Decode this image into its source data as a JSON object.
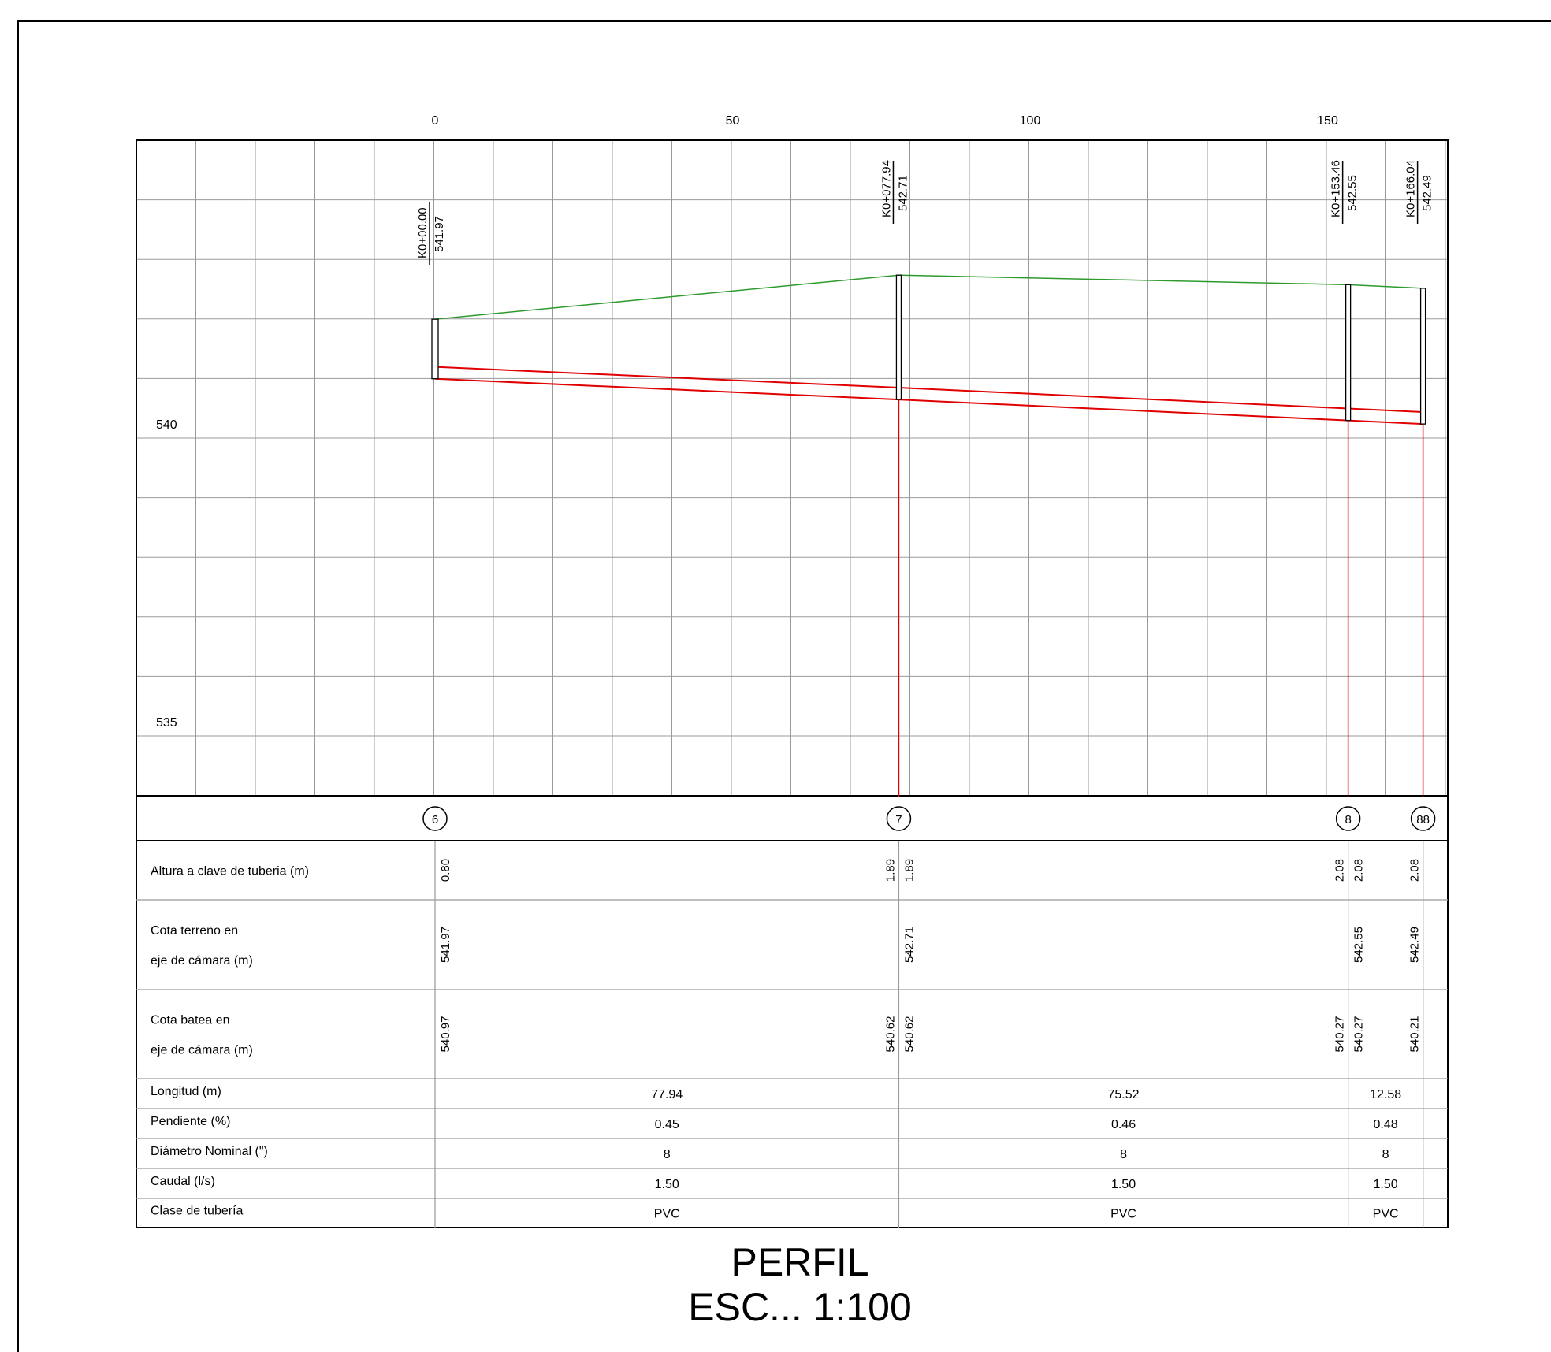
{
  "drawing": {
    "title": "PERFIL",
    "scale_label": "ESC... 1:100"
  },
  "colors": {
    "grid": "#9a9a9a",
    "frame": "#000000",
    "terrain": "#2e9a2e",
    "pipe": "#e00000",
    "marker_line": "#e00000"
  },
  "chart_data": {
    "type": "line",
    "x_ticks": [
      "0",
      "50",
      "100",
      "150"
    ],
    "y_ticks": [
      "540",
      "535"
    ],
    "xlim": [
      -50,
      170
    ],
    "ylim": [
      533,
      544
    ],
    "grid": true,
    "stations": [
      {
        "x": 0,
        "station": "K0+00.00",
        "elevation": "541.97",
        "node": "6",
        "ground": 541.97,
        "invert": 540.97,
        "structure_bottom": 540.97
      },
      {
        "x": 77.94,
        "station": "K0+077.94",
        "elevation": "542.71",
        "node": "7",
        "ground": 542.71,
        "invert": 540.62,
        "structure_bottom": 540.62
      },
      {
        "x": 153.46,
        "station": "K0+153.46",
        "elevation": "542.55",
        "node": "8",
        "ground": 542.55,
        "invert": 540.27,
        "structure_bottom": 540.27
      },
      {
        "x": 166.04,
        "station": "K0+166.04",
        "elevation": "542.49",
        "node": "88",
        "ground": 542.49,
        "invert": 540.21,
        "structure_bottom": 540.21
      }
    ],
    "pipe_diameter_m": 0.2,
    "series": []
  },
  "profile_table": {
    "rows": [
      {
        "label_lines": [
          "Altura a clave de tuberia (m)"
        ],
        "values": [
          {
            "x": 0,
            "side": "right",
            "text": "0.80"
          },
          {
            "x": 77.94,
            "side": "left",
            "text": "1.89"
          },
          {
            "x": 77.94,
            "side": "right",
            "text": "1.89"
          },
          {
            "x": 153.46,
            "side": "left",
            "text": "2.08"
          },
          {
            "x": 153.46,
            "side": "right",
            "text": "2.08"
          },
          {
            "x": 166.04,
            "side": "left",
            "text": "2.08"
          }
        ]
      },
      {
        "label_lines": [
          "Cota terreno en",
          "eje de cámara (m)"
        ],
        "values": [
          {
            "x": 0,
            "side": "right",
            "text": "541.97"
          },
          {
            "x": 77.94,
            "side": "right",
            "text": "542.71"
          },
          {
            "x": 153.46,
            "side": "right",
            "text": "542.55"
          },
          {
            "x": 166.04,
            "side": "left",
            "text": "542.49"
          }
        ]
      },
      {
        "label_lines": [
          "Cota batea en",
          "eje de cámara (m)"
        ],
        "values": [
          {
            "x": 0,
            "side": "right",
            "text": "540.97"
          },
          {
            "x": 77.94,
            "side": "left",
            "text": "540.62"
          },
          {
            "x": 77.94,
            "side": "right",
            "text": "540.62"
          },
          {
            "x": 153.46,
            "side": "left",
            "text": "540.27"
          },
          {
            "x": 153.46,
            "side": "right",
            "text": "540.27"
          },
          {
            "x": 166.04,
            "side": "left",
            "text": "540.21"
          }
        ]
      }
    ],
    "segment_rows": [
      {
        "label": "Longitud (m)",
        "values": [
          "77.94",
          "75.52",
          "12.58"
        ]
      },
      {
        "label": "Pendiente (%)",
        "values": [
          "0.45",
          "0.46",
          "0.48"
        ]
      },
      {
        "label": "Diámetro Nominal (\")",
        "values": [
          "8",
          "8",
          "8"
        ]
      },
      {
        "label": "Caudal (l/s)",
        "values": [
          "1.50",
          "1.50",
          "1.50"
        ]
      },
      {
        "label": "Clase de tubería",
        "values": [
          "PVC",
          "PVC",
          "PVC"
        ]
      }
    ]
  }
}
